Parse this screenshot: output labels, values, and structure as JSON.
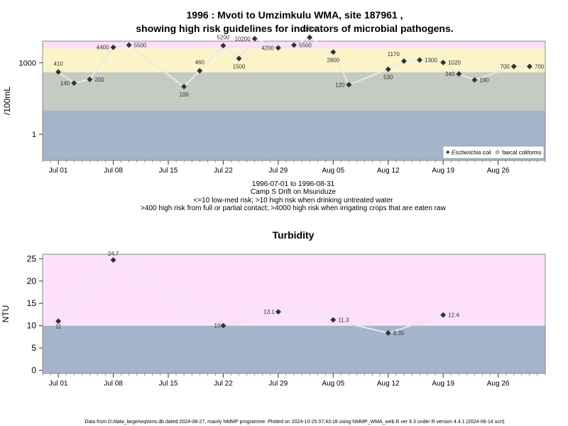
{
  "title_line1": "1996 : Mvoti to Umzimkulu WMA, site 187961 ,",
  "title_line2": "showing high risk guidelines for indicators of microbial pathogens.",
  "subtitle_lines": [
    "1996-07-01 to 1996-08-31",
    "Camp S Drift on Msunduze",
    "<=10 low-med risk; >10 high risk when drinking untreated water",
    ">400 high risk from full or partial contact; >4000 high risk when irrigating crops that are eaten raw"
  ],
  "footer": "Data from D:/data_large/wq/wms.db dated 2024-08-27, mainly NMMP programme. Plotted on 2024-10-25 07:43:18 using NMMP_WMA_web.R ver 9.3 under R version 4.4.1 (2024-06-14 ucrt)",
  "colors": {
    "band_low": "#a3b4cb",
    "band_midlow": "#c3cbc3",
    "band_mid": "#fbf4c8",
    "band_high": "#fde0fb",
    "line": "#e8e8e8",
    "point": "#333333"
  },
  "chart_data": [
    {
      "type": "line",
      "title": "",
      "ylabel": "/100mL",
      "xlabel": "",
      "yscale": "log10",
      "ylim": [
        0.08,
        8000
      ],
      "x_ticks": [
        "Jul 01",
        "Jul 08",
        "Jul 15",
        "Jul 22",
        "Jul 29",
        "Aug 05",
        "Aug 12",
        "Aug 19",
        "Aug 26"
      ],
      "x_tick_dates": [
        "1996-07-01",
        "1996-07-08",
        "1996-07-15",
        "1996-07-22",
        "1996-07-29",
        "1996-08-05",
        "1996-08-12",
        "1996-08-19",
        "1996-08-26"
      ],
      "y_ticks": [
        1,
        1000
      ],
      "y_tick_labels": [
        "1",
        "1000"
      ],
      "xlim": [
        "1996-06-29",
        "1996-09-01"
      ],
      "bands": [
        {
          "from": 0.08,
          "to": 10,
          "color": "band_low"
        },
        {
          "from": 10,
          "to": 400,
          "color": "band_midlow"
        },
        {
          "from": 400,
          "to": 4000,
          "color": "band_mid"
        },
        {
          "from": 4000,
          "to": 8000,
          "color": "band_high"
        }
      ],
      "legend": {
        "placement": "bottom-right",
        "entries": [
          "Escherichia coli",
          "faecal coliforms"
        ]
      },
      "series": [
        {
          "name": "Escherichia coli",
          "points": [
            {
              "x": "1996-07-01",
              "y": 410,
              "label": "410"
            },
            {
              "x": "1996-07-03",
              "y": 140,
              "label": "140"
            },
            {
              "x": "1996-07-05",
              "y": 200,
              "label": "200"
            },
            {
              "x": "1996-07-08",
              "y": 4400,
              "label": "4400"
            },
            {
              "x": "1996-07-10",
              "y": 5500,
              "label": "5500"
            },
            {
              "x": "1996-07-17",
              "y": 100,
              "label": "100"
            },
            {
              "x": "1996-07-19",
              "y": 460,
              "label": "460"
            },
            {
              "x": "1996-07-22",
              "y": 5200,
              "label": "5200"
            },
            {
              "x": "1996-07-24",
              "y": 1500,
              "label": "1500"
            },
            {
              "x": "1996-07-26",
              "y": 10200,
              "label": "10200"
            },
            {
              "x": "1996-07-29",
              "y": 4200,
              "label": "4200"
            },
            {
              "x": "1996-07-31",
              "y": 5500,
              "label": "5500"
            },
            {
              "x": "1996-08-02",
              "y": 11500,
              "label": "11500"
            },
            {
              "x": "1996-08-05",
              "y": 2800,
              "label": "2800"
            },
            {
              "x": "1996-08-07",
              "y": 120,
              "label": "120"
            },
            {
              "x": "1996-08-12",
              "y": 530,
              "label": "530"
            },
            {
              "x": "1996-08-14",
              "y": 1170,
              "label": "1170"
            },
            {
              "x": "1996-08-16",
              "y": 1300,
              "label": "1300"
            },
            {
              "x": "1996-08-19",
              "y": 1020,
              "label": "1020"
            },
            {
              "x": "1996-08-21",
              "y": 340,
              "label": "340"
            },
            {
              "x": "1996-08-23",
              "y": 190,
              "label": "190"
            },
            {
              "x": "1996-08-28",
              "y": 700,
              "label": "700"
            },
            {
              "x": "1996-08-30",
              "y": 700,
              "label": "700"
            }
          ]
        }
      ]
    },
    {
      "type": "line",
      "title": "Turbidity",
      "ylabel": "NTU",
      "xlabel": "",
      "yscale": "linear",
      "ylim": [
        -0.7,
        26
      ],
      "x_ticks": [
        "Jul 01",
        "Jul 08",
        "Jul 15",
        "Jul 22",
        "Jul 29",
        "Aug 05",
        "Aug 12",
        "Aug 19",
        "Aug 26"
      ],
      "x_tick_dates": [
        "1996-07-01",
        "1996-07-08",
        "1996-07-15",
        "1996-07-22",
        "1996-07-29",
        "1996-08-05",
        "1996-08-12",
        "1996-08-19",
        "1996-08-26"
      ],
      "y_ticks": [
        0,
        5,
        10,
        15,
        20,
        25
      ],
      "y_tick_labels": [
        "0",
        "5",
        "10",
        "15",
        "20",
        "25"
      ],
      "xlim": [
        "1996-06-29",
        "1996-09-01"
      ],
      "bands": [
        {
          "from": -0.7,
          "to": 10,
          "color": "band_low"
        },
        {
          "from": 10,
          "to": 26,
          "color": "band_high"
        }
      ],
      "series": [
        {
          "name": "",
          "points": [
            {
              "x": "1996-07-01",
              "y": 11,
              "label": "11"
            },
            {
              "x": "1996-07-08",
              "y": 24.7,
              "label": "24.7"
            },
            {
              "x": "1996-07-22",
              "y": 10,
              "label": "10"
            },
            {
              "x": "1996-07-29",
              "y": 13.1,
              "label": "13.1"
            },
            {
              "x": "1996-08-05",
              "y": 11.3,
              "label": "11.3"
            },
            {
              "x": "1996-08-12",
              "y": 8.35,
              "label": "8.35"
            },
            {
              "x": "1996-08-19",
              "y": 12.4,
              "label": "12.4"
            }
          ]
        }
      ]
    }
  ]
}
